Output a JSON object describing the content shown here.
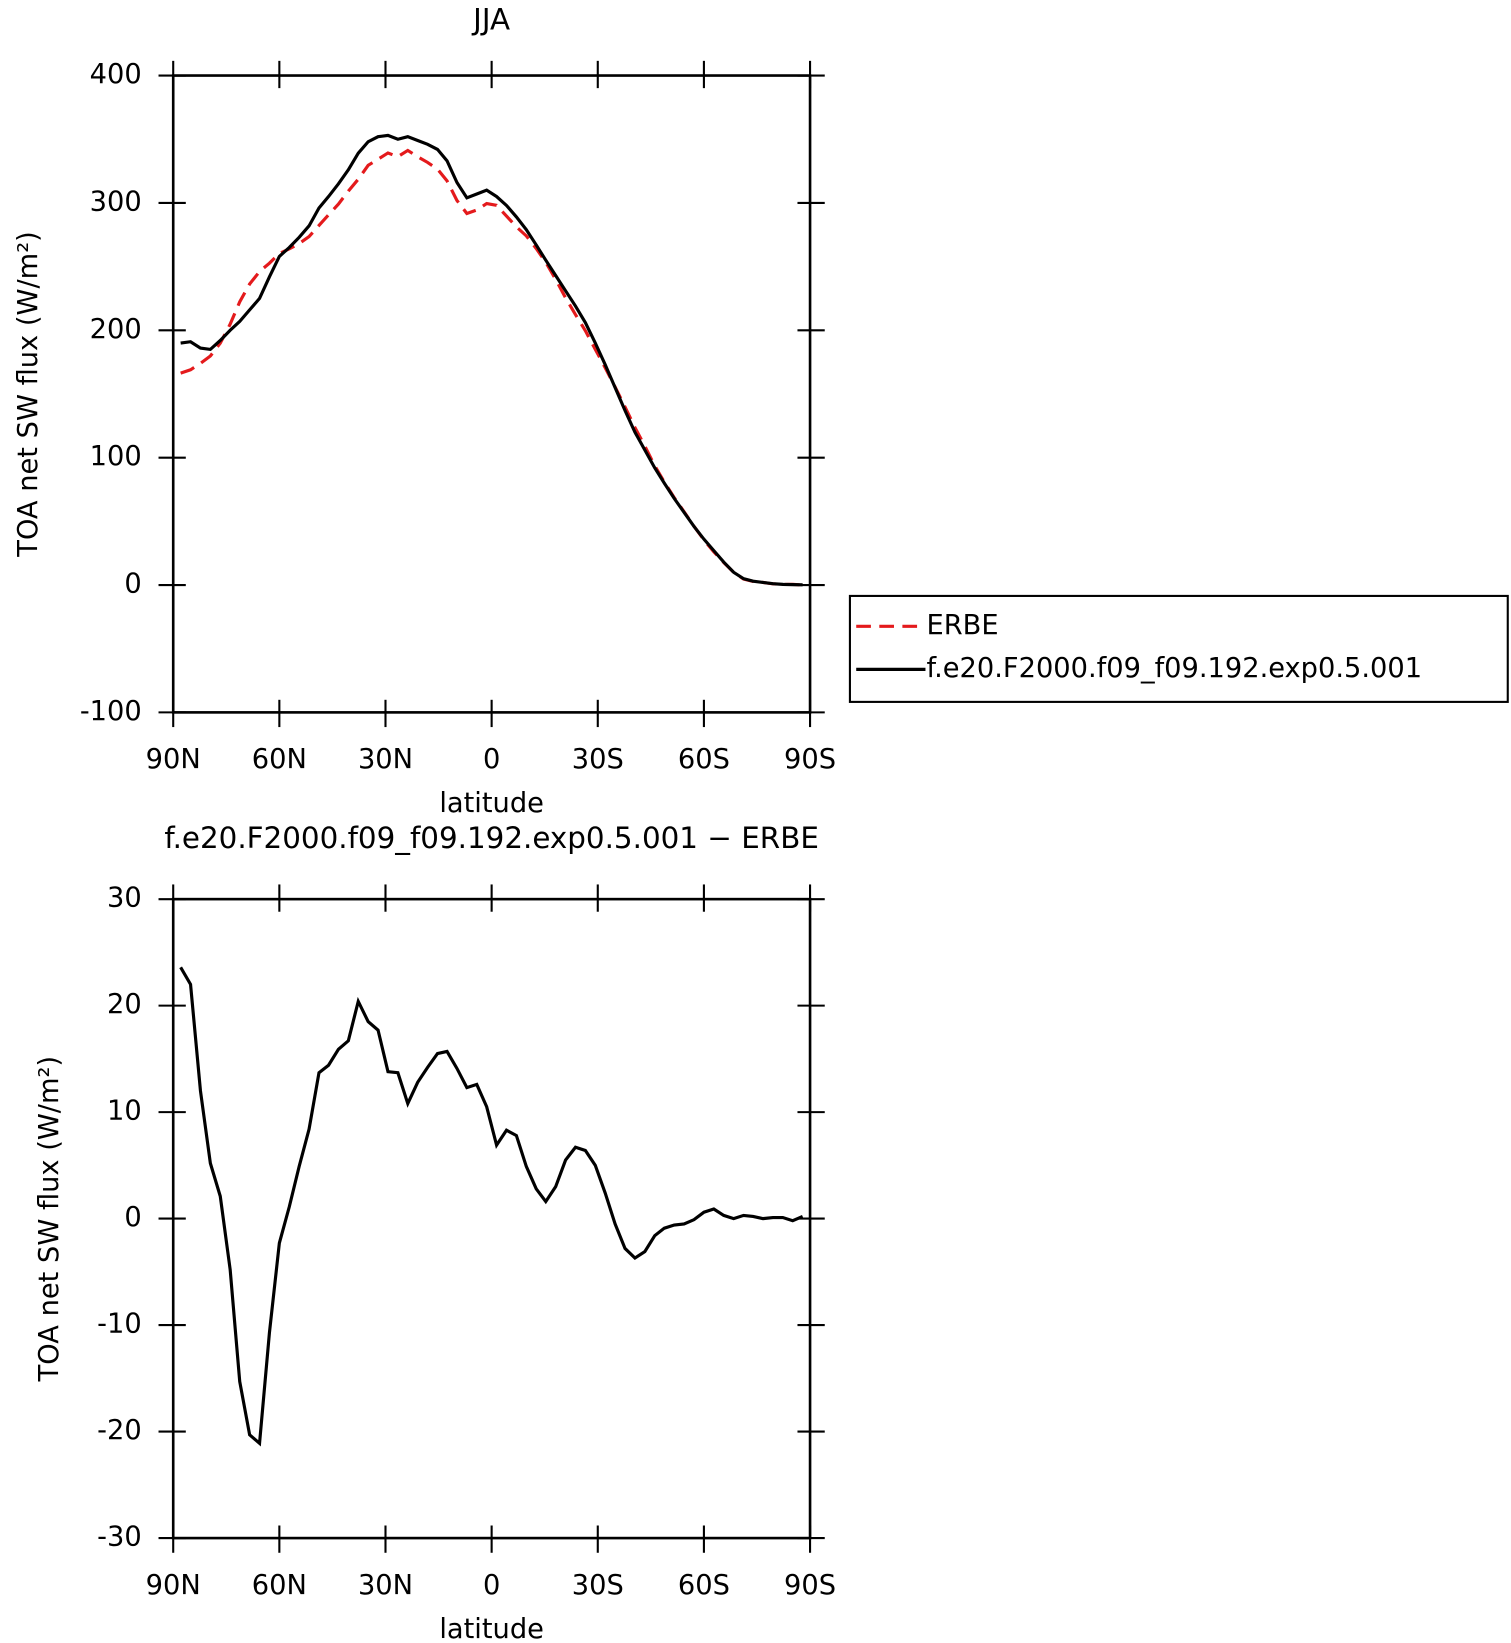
{
  "chart_data": [
    {
      "type": "line",
      "title": "JJA",
      "x_label": "latitude",
      "y_label": "TOA net SW flux (W/m²)",
      "x": [
        87.9,
        85.1,
        82.3,
        79.5,
        76.7,
        73.9,
        71.2,
        68.4,
        65.6,
        62.8,
        60.0,
        57.2,
        54.4,
        51.6,
        48.8,
        46.1,
        43.3,
        40.5,
        37.7,
        34.9,
        32.1,
        29.3,
        26.5,
        23.7,
        20.9,
        18.1,
        15.3,
        12.6,
        9.8,
        7.0,
        4.2,
        1.4,
        -1.4,
        -4.2,
        -7.0,
        -9.8,
        -12.6,
        -15.3,
        -18.1,
        -20.9,
        -23.7,
        -26.5,
        -29.3,
        -32.1,
        -34.9,
        -37.7,
        -40.5,
        -43.3,
        -46.1,
        -48.8,
        -51.6,
        -54.4,
        -57.2,
        -60.0,
        -62.8,
        -65.6,
        -68.4,
        -71.2,
        -73.9,
        -76.7,
        -79.5,
        -82.3,
        -85.1,
        -87.9
      ],
      "series": [
        {
          "name": "ERBE",
          "color": "#e41a1c",
          "line_style": "dashed",
          "values": [
            166.4,
            169,
            174,
            179.8,
            189.9,
            204.8,
            222.3,
            236.3,
            246.1,
            252.7,
            260.3,
            263.9,
            268.1,
            273.6,
            282.3,
            290.6,
            299.1,
            309.3,
            318.6,
            329.5,
            334.3,
            339.2,
            336.3,
            341.2,
            336.2,
            331.8,
            326.5,
            317.3,
            301.9,
            291.7,
            294.4,
            299.5,
            298.1,
            289.7,
            281.2,
            274.1,
            264.2,
            253.4,
            240,
            225.5,
            212.3,
            199.6,
            185,
            170.6,
            155.5,
            139.8,
            123.7,
            109.1,
            93.6,
            80.9,
            68.6,
            57.5,
            46.1,
            35.4,
            26.1,
            17.7,
            10,
            4.7,
            2.8,
            2,
            0.9,
            0.4,
            0.5,
            0
          ]
        },
        {
          "name": "f.e20.F2000.f09_f09.192.exp0.5.001",
          "color": "#000000",
          "line_style": "solid",
          "values": [
            190,
            191,
            186,
            185,
            192,
            200,
            207,
            216,
            225,
            242,
            258,
            265,
            273,
            282,
            296,
            305,
            315,
            326,
            339,
            348,
            352,
            353,
            350,
            352,
            349,
            346,
            342,
            333,
            316,
            304,
            307,
            310,
            305,
            298,
            289,
            279,
            267,
            255,
            243,
            231,
            219,
            206,
            190,
            173,
            155,
            137,
            120,
            106,
            92,
            80,
            68,
            57,
            46,
            36,
            27,
            18,
            10,
            5,
            3,
            2,
            1,
            0.5,
            0.3,
            0.2
          ]
        }
      ],
      "xlim": [
        90,
        -90
      ],
      "xticks": [
        {
          "value": 90,
          "label": "90N"
        },
        {
          "value": 60,
          "label": "60N"
        },
        {
          "value": 30,
          "label": "30N"
        },
        0,
        {
          "value": -30,
          "label": "30S"
        },
        {
          "value": -60,
          "label": "60S"
        },
        {
          "value": -90,
          "label": "90S"
        }
      ],
      "ylim": [
        -100,
        400
      ],
      "yticks": [
        -100,
        0,
        100,
        200,
        300,
        400
      ],
      "legend": "outside right"
    },
    {
      "type": "line",
      "title": "f.e20.F2000.f09_f09.192.exp0.5.001 − ERBE",
      "x_label": "latitude",
      "y_label": "TOA net SW flux (W/m²)",
      "x": [
        87.9,
        85.1,
        82.3,
        79.5,
        76.7,
        73.9,
        71.2,
        68.4,
        65.6,
        62.8,
        60.0,
        57.2,
        54.4,
        51.6,
        48.8,
        46.1,
        43.3,
        40.5,
        37.7,
        34.9,
        32.1,
        29.3,
        26.5,
        23.7,
        20.9,
        18.1,
        15.3,
        12.6,
        9.8,
        7.0,
        4.2,
        1.4,
        -1.4,
        -4.2,
        -7.0,
        -9.8,
        -12.6,
        -15.3,
        -18.1,
        -20.9,
        -23.7,
        -26.5,
        -29.3,
        -32.1,
        -34.9,
        -37.7,
        -40.5,
        -43.3,
        -46.1,
        -48.8,
        -51.6,
        -54.4,
        -57.2,
        -60.0,
        -62.8,
        -65.6,
        -68.4,
        -71.2,
        -73.9,
        -76.7,
        -79.5,
        -82.3,
        -85.1,
        -87.9
      ],
      "series": [
        {
          "color": "#000000",
          "line_style": "solid",
          "values": [
            23.6,
            22.0,
            12,
            5.2,
            2.1,
            -4.8,
            -15.3,
            -20.3,
            -21.1,
            -10.7,
            -2.3,
            1.1,
            4.9,
            8.4,
            13.7,
            14.4,
            15.9,
            16.7,
            20.4,
            18.5,
            17.7,
            13.8,
            13.7,
            10.8,
            12.8,
            14.2,
            15.5,
            15.7,
            14.1,
            12.3,
            12.6,
            10.5,
            6.9,
            8.3,
            7.8,
            4.9,
            2.8,
            1.6,
            3.0,
            5.5,
            6.7,
            6.4,
            5.0,
            2.4,
            -0.5,
            -2.8,
            -3.7,
            -3.1,
            -1.6,
            -0.9,
            -0.6,
            -0.5,
            -0.1,
            0.6,
            0.9,
            0.3,
            0.0,
            0.3,
            0.2,
            0.0,
            0.1,
            0.1,
            -0.2,
            0.2
          ]
        }
      ],
      "xlim": [
        90,
        -90
      ],
      "xticks": [
        {
          "value": 90,
          "label": "90N"
        },
        {
          "value": 60,
          "label": "60N"
        },
        {
          "value": 30,
          "label": "30N"
        },
        0,
        {
          "value": -30,
          "label": "30S"
        },
        {
          "value": -60,
          "label": "60S"
        },
        {
          "value": -90,
          "label": "90S"
        }
      ],
      "ylim": [
        -30,
        30
      ],
      "yticks": [
        -30,
        -20,
        -10,
        0,
        10,
        20,
        30
      ]
    }
  ]
}
